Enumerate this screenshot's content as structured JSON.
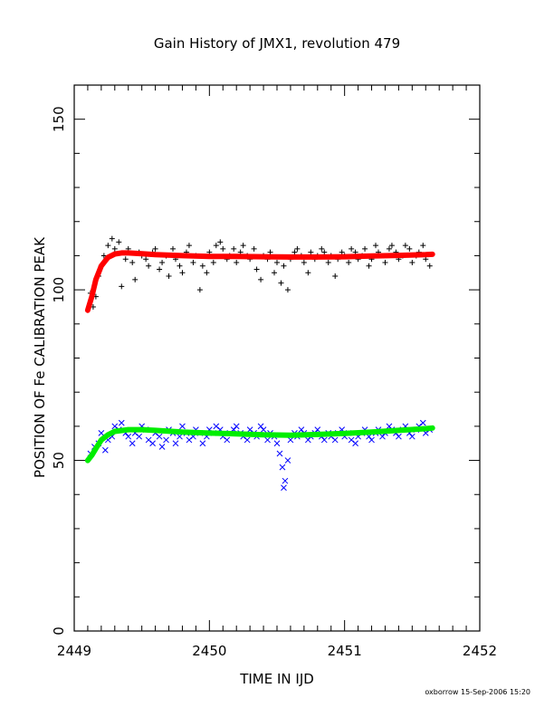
{
  "chart_data": {
    "type": "scatter",
    "title": "Gain History of JMX1, revolution 479",
    "xlabel": "TIME IN IJD",
    "ylabel": "POSITION OF Fe CALIBRATION PEAK",
    "xlim": [
      2449,
      2452
    ],
    "ylim": [
      0,
      160
    ],
    "x_ticks": [
      "2449",
      "2450",
      "2451",
      "2452"
    ],
    "y_ticks": [
      "0",
      "50",
      "100",
      "150"
    ],
    "grid": false,
    "series": [
      {
        "marker": "+",
        "color": "#000000",
        "x": [
          2449.12,
          2449.14,
          2449.16,
          2449.18,
          2449.2,
          2449.22,
          2449.25,
          2449.28,
          2449.3,
          2449.33,
          2449.35,
          2449.38,
          2449.4,
          2449.43,
          2449.45,
          2449.48,
          2449.5,
          2449.53,
          2449.55,
          2449.58,
          2449.6,
          2449.63,
          2449.65,
          2449.68,
          2449.7,
          2449.73,
          2449.75,
          2449.78,
          2449.8,
          2449.83,
          2449.85,
          2449.88,
          2449.9,
          2449.93,
          2449.95,
          2449.98,
          2450,
          2450.03,
          2450.05,
          2450.08,
          2450.1,
          2450.13,
          2450.15,
          2450.18,
          2450.2,
          2450.23,
          2450.25,
          2450.28,
          2450.3,
          2450.33,
          2450.35,
          2450.38,
          2450.4,
          2450.43,
          2450.45,
          2450.48,
          2450.5,
          2450.53,
          2450.55,
          2450.58,
          2450.6,
          2450.63,
          2450.65,
          2450.68,
          2450.7,
          2450.73,
          2450.75,
          2450.78,
          2450.8,
          2450.83,
          2450.85,
          2450.88,
          2450.9,
          2450.93,
          2450.95,
          2450.98,
          2451,
          2451.03,
          2451.05,
          2451.08,
          2451.1,
          2451.13,
          2451.15,
          2451.18,
          2451.2,
          2451.23,
          2451.25,
          2451.28,
          2451.3,
          2451.33,
          2451.35,
          2451.38,
          2451.4,
          2451.43,
          2451.45,
          2451.48,
          2451.5,
          2451.53,
          2451.55,
          2451.58,
          2451.6,
          2451.63
        ],
        "values": [
          99,
          95,
          98,
          104,
          107,
          110,
          113,
          115,
          112,
          114,
          101,
          109,
          112,
          108,
          103,
          111,
          110,
          109,
          107,
          111,
          112,
          106,
          108,
          110,
          104,
          112,
          109,
          107,
          105,
          111,
          113,
          108,
          110,
          100,
          107,
          105,
          111,
          108,
          113,
          114,
          112,
          109,
          110,
          112,
          108,
          111,
          113,
          110,
          109,
          112,
          106,
          103,
          110,
          109,
          111,
          105,
          108,
          102,
          107,
          100,
          109,
          111,
          112,
          110,
          108,
          105,
          111,
          109,
          110,
          112,
          111,
          108,
          110,
          104,
          109,
          111,
          110,
          108,
          112,
          111,
          109,
          110,
          112,
          107,
          109,
          113,
          111,
          110,
          108,
          112,
          113,
          111,
          109,
          110,
          113,
          112,
          108,
          110,
          111,
          113,
          109,
          107
        ]
      },
      {
        "marker": "curve",
        "color": "#ff0000",
        "x": [
          2449.1,
          2449.13,
          2449.16,
          2449.2,
          2449.25,
          2449.3,
          2449.35,
          2449.4,
          2449.5,
          2449.6,
          2449.8,
          2450,
          2450.2,
          2450.4,
          2450.6,
          2450.8,
          2451,
          2451.2,
          2451.4,
          2451.6,
          2451.65
        ],
        "values": [
          94,
          98,
          103,
          107,
          109.5,
          110.5,
          110.8,
          110.8,
          110.6,
          110.3,
          110,
          109.8,
          109.8,
          109.7,
          109.6,
          109.6,
          109.7,
          109.9,
          110.1,
          110.3,
          110.4
        ]
      },
      {
        "marker": "x",
        "color": "#0000ff",
        "x": [
          2449.12,
          2449.15,
          2449.18,
          2449.2,
          2449.23,
          2449.25,
          2449.28,
          2449.3,
          2449.33,
          2449.35,
          2449.38,
          2449.4,
          2449.43,
          2449.45,
          2449.48,
          2449.5,
          2449.53,
          2449.55,
          2449.58,
          2449.6,
          2449.63,
          2449.65,
          2449.68,
          2449.7,
          2449.73,
          2449.75,
          2449.78,
          2449.8,
          2449.83,
          2449.85,
          2449.88,
          2449.9,
          2449.93,
          2449.95,
          2449.98,
          2450,
          2450.03,
          2450.05,
          2450.08,
          2450.1,
          2450.13,
          2450.15,
          2450.18,
          2450.2,
          2450.23,
          2450.25,
          2450.28,
          2450.3,
          2450.33,
          2450.35,
          2450.38,
          2450.4,
          2450.43,
          2450.45,
          2450.48,
          2450.5,
          2450.52,
          2450.54,
          2450.55,
          2450.56,
          2450.58,
          2450.6,
          2450.63,
          2450.65,
          2450.68,
          2450.7,
          2450.73,
          2450.75,
          2450.78,
          2450.8,
          2450.83,
          2450.85,
          2450.88,
          2450.9,
          2450.93,
          2450.95,
          2450.98,
          2451,
          2451.03,
          2451.05,
          2451.08,
          2451.1,
          2451.13,
          2451.15,
          2451.18,
          2451.2,
          2451.23,
          2451.25,
          2451.28,
          2451.3,
          2451.33,
          2451.35,
          2451.38,
          2451.4,
          2451.43,
          2451.45,
          2451.48,
          2451.5,
          2451.53,
          2451.55,
          2451.58,
          2451.6,
          2451.63
        ],
        "values": [
          52,
          54,
          55,
          58,
          53,
          56,
          57,
          60,
          59,
          61,
          58,
          57,
          55,
          58,
          57,
          60,
          59,
          56,
          55,
          58,
          57,
          54,
          56,
          59,
          58,
          55,
          57,
          60,
          58,
          56,
          57,
          59,
          58,
          55,
          57,
          59,
          58,
          60,
          59,
          57,
          56,
          58,
          59,
          60,
          58,
          57,
          56,
          59,
          58,
          57,
          60,
          59,
          56,
          58,
          57,
          55,
          52,
          48,
          42,
          44,
          50,
          56,
          58,
          57,
          59,
          58,
          56,
          57,
          58,
          59,
          57,
          56,
          58,
          57,
          56,
          58,
          59,
          57,
          58,
          56,
          55,
          57,
          58,
          59,
          57,
          56,
          58,
          59,
          57,
          58,
          60,
          59,
          58,
          57,
          59,
          60,
          58,
          57,
          59,
          60,
          61,
          58,
          59
        ]
      },
      {
        "marker": "curve",
        "color": "#00ee00",
        "x": [
          2449.1,
          2449.13,
          2449.16,
          2449.2,
          2449.25,
          2449.3,
          2449.4,
          2449.5,
          2449.6,
          2449.8,
          2450,
          2450.2,
          2450.4,
          2450.6,
          2450.8,
          2451,
          2451.2,
          2451.4,
          2451.6,
          2451.65
        ],
        "values": [
          50,
          51.5,
          53.5,
          56,
          57.5,
          58.5,
          59,
          59,
          58.8,
          58.3,
          58,
          57.8,
          57.5,
          57.4,
          57.6,
          57.9,
          58.3,
          58.8,
          59.3,
          59.5
        ]
      }
    ]
  },
  "footer": "oxborrow 15-Sep-2006 15:20"
}
